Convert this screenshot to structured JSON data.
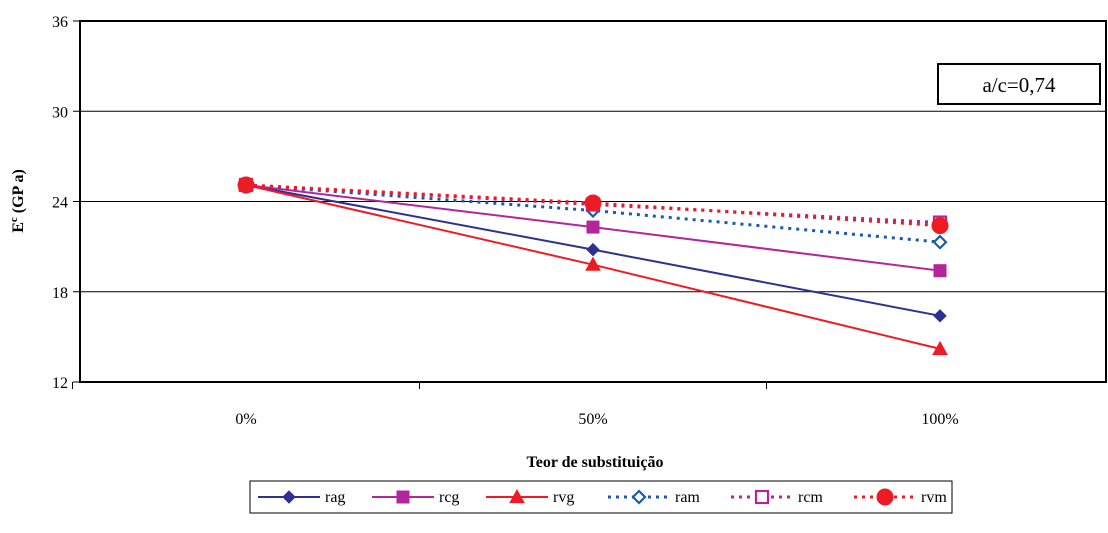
{
  "chart_data": {
    "type": "line",
    "categories": [
      "0%",
      "50%",
      "100%"
    ],
    "xlabel": "Teor de substituição",
    "ylabel_main": "E",
    "ylabel_sup": "c",
    "ylabel_unit": " (GP a)",
    "ylim": [
      12,
      36
    ],
    "yticks": [
      12,
      18,
      24,
      30,
      36
    ],
    "grid": true,
    "annotation": "a/c=0,74",
    "legend_position": "bottom",
    "series": [
      {
        "name": "rag",
        "values": [
          25.1,
          20.8,
          16.4
        ],
        "color": "#2E3192",
        "dash": "solid",
        "marker": "diamond",
        "filled": true
      },
      {
        "name": "rcg",
        "values": [
          25.1,
          22.3,
          19.4
        ],
        "color": "#B5259A",
        "dash": "solid",
        "marker": "square",
        "filled": true
      },
      {
        "name": "rvg",
        "values": [
          25.1,
          19.8,
          14.2
        ],
        "color": "#ED1C24",
        "dash": "solid",
        "marker": "triangle",
        "filled": true
      },
      {
        "name": "ram",
        "values": [
          25.1,
          23.4,
          21.3
        ],
        "color": "#1B5AA8",
        "dash": "dotted",
        "marker": "diamond",
        "filled": false
      },
      {
        "name": "rcm",
        "values": [
          25.1,
          23.8,
          22.6
        ],
        "color": "#B5259A",
        "dash": "dotted",
        "marker": "square",
        "filled": false
      },
      {
        "name": "rvm",
        "values": [
          25.1,
          23.9,
          22.4
        ],
        "color": "#ED1C24",
        "dash": "dotted",
        "marker": "circle",
        "filled": true
      }
    ]
  }
}
